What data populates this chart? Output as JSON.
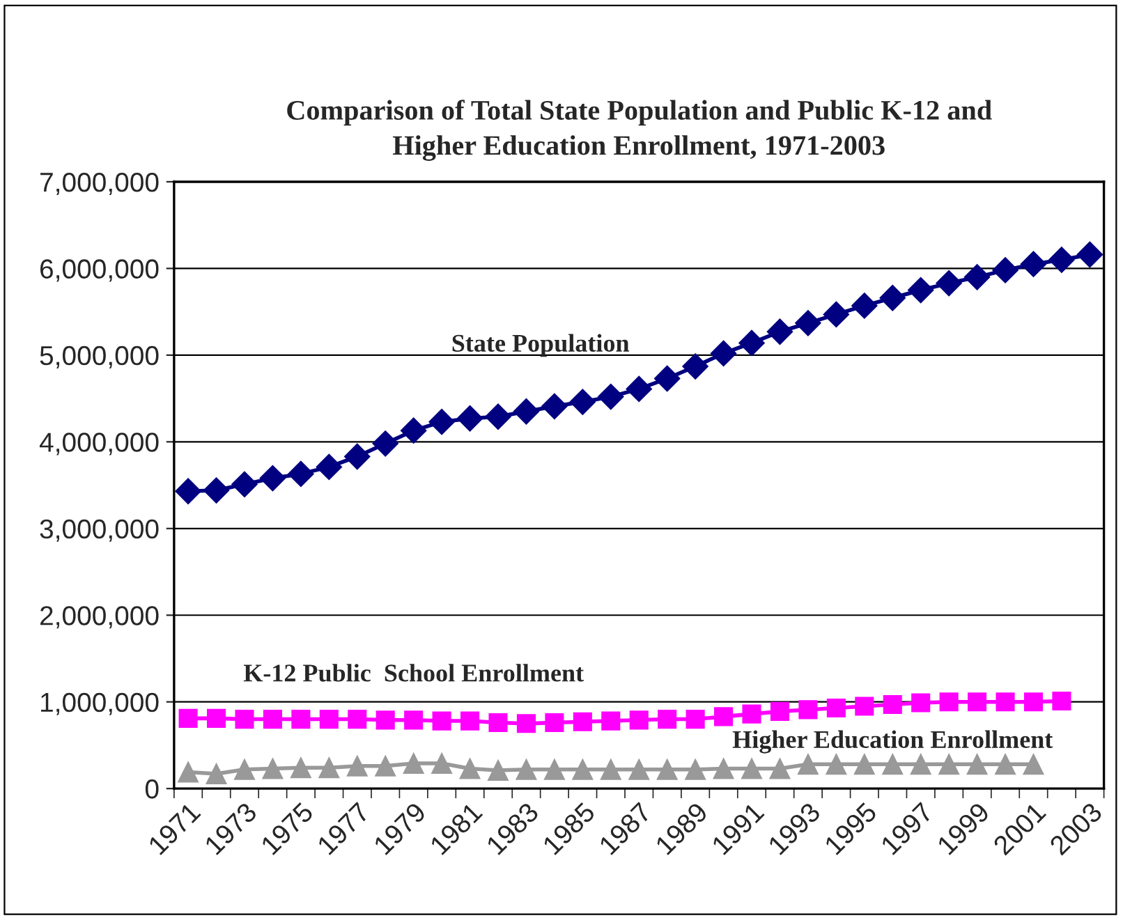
{
  "chart_data": {
    "type": "line",
    "title": "Comparison of Total State Population and Public K-12 and\nHigher Education Enrollment, 1971-2003",
    "categories": [
      "1971",
      null,
      "1973",
      null,
      "1975",
      null,
      "1977",
      null,
      "1979",
      null,
      "1981",
      null,
      "1983",
      null,
      "1985",
      null,
      "1987",
      null,
      "1989",
      null,
      "1991",
      null,
      "1993",
      null,
      "1995",
      null,
      "1997",
      null,
      "1999",
      null,
      "2001",
      null,
      "2003"
    ],
    "series": [
      {
        "name": "State Population",
        "color": "#000080",
        "marker": "diamond",
        "values": [
          3430000,
          3440000,
          3510000,
          3580000,
          3630000,
          3710000,
          3830000,
          3980000,
          4130000,
          4230000,
          4270000,
          4290000,
          4350000,
          4410000,
          4460000,
          4520000,
          4610000,
          4730000,
          4870000,
          5020000,
          5140000,
          5270000,
          5370000,
          5470000,
          5570000,
          5660000,
          5750000,
          5830000,
          5900000,
          5980000,
          6050000,
          6100000,
          6160000
        ]
      },
      {
        "name": "K-12 Public  School Enrollment",
        "color": "#ff00ff",
        "marker": "square",
        "values": [
          810000,
          810000,
          800000,
          800000,
          800000,
          800000,
          800000,
          790000,
          790000,
          780000,
          780000,
          760000,
          750000,
          760000,
          770000,
          780000,
          790000,
          800000,
          800000,
          830000,
          860000,
          890000,
          910000,
          930000,
          950000,
          970000,
          990000,
          1000000,
          1000000,
          1000000,
          1000000,
          1010000,
          null
        ]
      },
      {
        "name": "Higher Education Enrollment",
        "color": "#999999",
        "marker": "triangle",
        "values": [
          190000,
          170000,
          220000,
          230000,
          240000,
          240000,
          260000,
          260000,
          290000,
          290000,
          230000,
          210000,
          220000,
          220000,
          220000,
          220000,
          220000,
          220000,
          220000,
          230000,
          230000,
          230000,
          280000,
          280000,
          280000,
          280000,
          280000,
          280000,
          280000,
          280000,
          280000,
          null,
          null
        ]
      }
    ],
    "ylim": [
      0,
      7000000
    ],
    "yticks": [
      {
        "value": 0,
        "label": "0"
      },
      {
        "value": 1000000,
        "label": "1,000,000"
      },
      {
        "value": 2000000,
        "label": "2,000,000"
      },
      {
        "value": 3000000,
        "label": "3,000,000"
      },
      {
        "value": 4000000,
        "label": "4,000,000"
      },
      {
        "value": 5000000,
        "label": "5,000,000"
      },
      {
        "value": 6000000,
        "label": "6,000,000"
      },
      {
        "value": 7000000,
        "label": "7,000,000"
      }
    ],
    "grid": "y",
    "legend": false,
    "line_style": "solid"
  }
}
